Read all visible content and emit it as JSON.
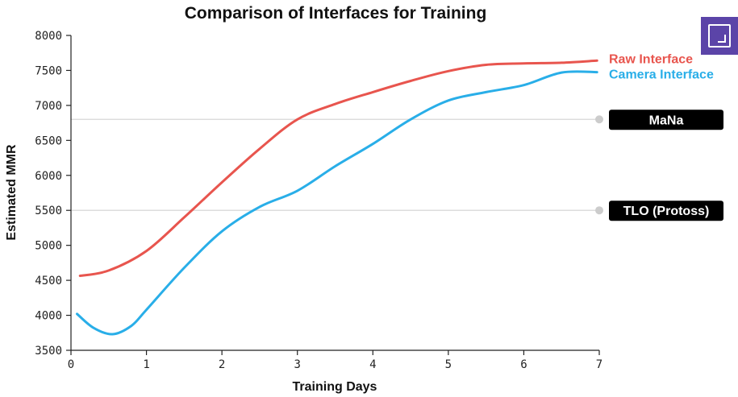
{
  "chart_data": {
    "type": "line",
    "title": "Comparison of Interfaces for Training",
    "xlabel": "Training Days",
    "ylabel": "Estimated MMR",
    "xlim": [
      0,
      7
    ],
    "ylim": [
      3500,
      8000
    ],
    "x_ticks": [
      "0",
      "1",
      "2",
      "3",
      "4",
      "5",
      "6",
      "7"
    ],
    "y_ticks": [
      "3500",
      "4000",
      "4500",
      "5000",
      "5500",
      "6000",
      "6500",
      "7000",
      "7500",
      "8000"
    ],
    "series": [
      {
        "name": "Raw Interface",
        "color": "#e8554e",
        "points": [
          [
            0.12,
            4565
          ],
          [
            0.5,
            4640
          ],
          [
            1,
            4920
          ],
          [
            1.5,
            5400
          ],
          [
            2,
            5900
          ],
          [
            2.5,
            6380
          ],
          [
            3,
            6800
          ],
          [
            3.5,
            7020
          ],
          [
            4,
            7190
          ],
          [
            4.5,
            7350
          ],
          [
            5,
            7490
          ],
          [
            5.5,
            7580
          ],
          [
            6,
            7600
          ],
          [
            6.5,
            7610
          ],
          [
            6.97,
            7640
          ]
        ]
      },
      {
        "name": "Camera Interface",
        "color": "#29aee8",
        "points": [
          [
            0.08,
            4020
          ],
          [
            0.3,
            3820
          ],
          [
            0.55,
            3730
          ],
          [
            0.8,
            3850
          ],
          [
            1,
            4080
          ],
          [
            1.5,
            4680
          ],
          [
            2,
            5200
          ],
          [
            2.5,
            5550
          ],
          [
            3,
            5780
          ],
          [
            3.5,
            6130
          ],
          [
            4,
            6450
          ],
          [
            4.5,
            6800
          ],
          [
            5,
            7070
          ],
          [
            5.5,
            7190
          ],
          [
            6,
            7290
          ],
          [
            6.5,
            7470
          ],
          [
            6.97,
            7475
          ]
        ]
      }
    ],
    "reference_lines": [
      {
        "label": "MaNa",
        "value": 6800
      },
      {
        "label": "TLO (Protoss)",
        "value": 5500
      }
    ],
    "legend_position": "right"
  },
  "controls": {
    "fullscreen_icon": "fullscreen-icon"
  }
}
